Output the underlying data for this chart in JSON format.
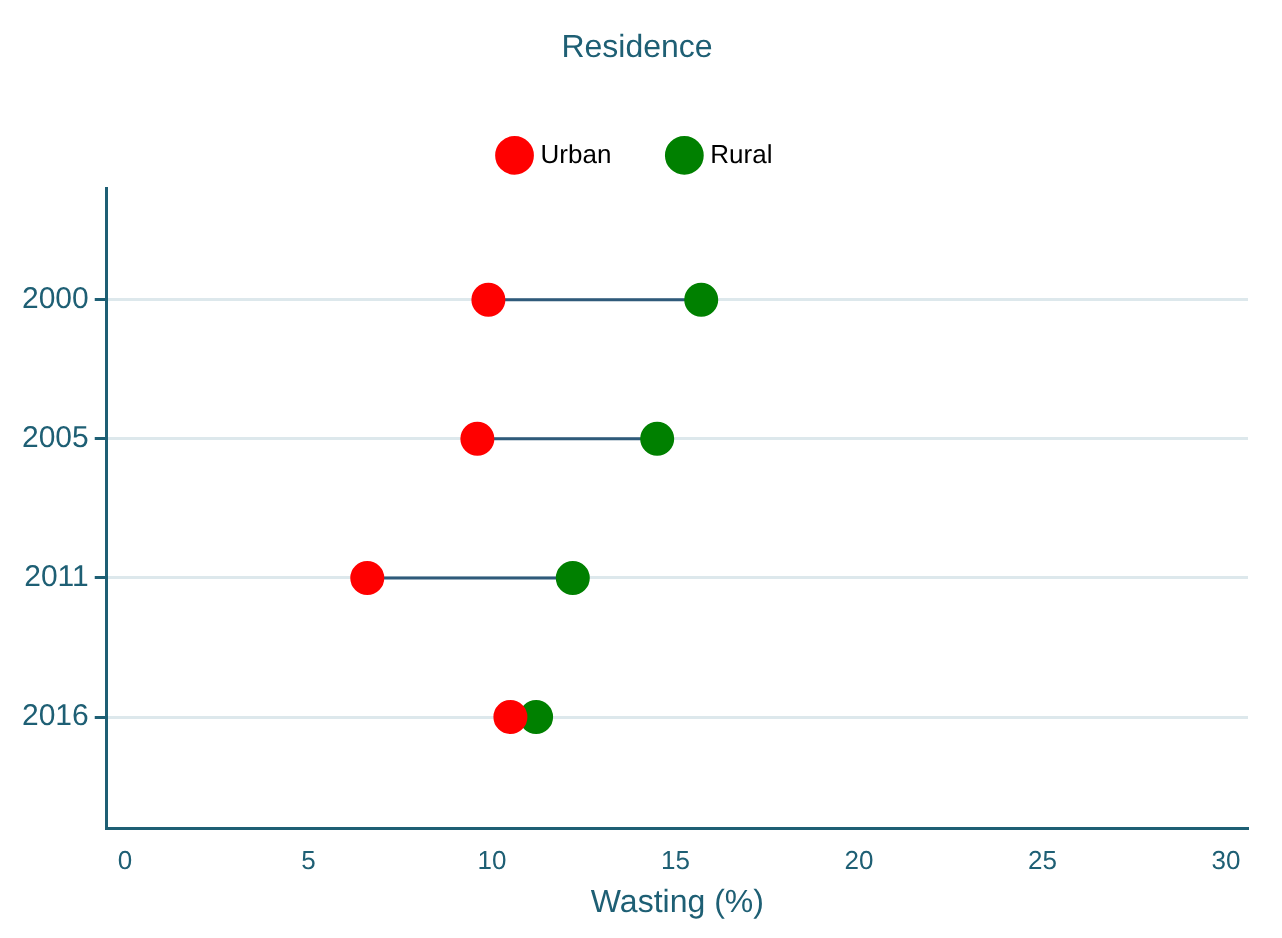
{
  "chart_data": {
    "type": "scatter",
    "orientation": "horizontal",
    "legend_title": "Residence",
    "xlabel": "Wasting (%)",
    "categories": [
      "2000",
      "2005",
      "2011",
      "2016"
    ],
    "series": [
      {
        "name": "Urban",
        "color": "#ff0000",
        "values": [
          9.9,
          9.6,
          6.6,
          10.5
        ]
      },
      {
        "name": "Rural",
        "color": "#008000",
        "values": [
          15.7,
          14.5,
          12.2,
          11.2
        ]
      }
    ],
    "xlim": [
      -0.5,
      30.6
    ],
    "xticks": [
      0,
      5,
      10,
      15,
      20,
      25,
      30
    ],
    "grid": "y",
    "legend": "top",
    "marker": "circle"
  }
}
